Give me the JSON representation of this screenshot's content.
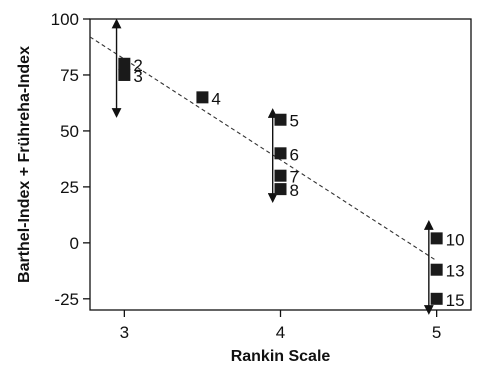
{
  "chart_data": {
    "type": "scatter",
    "title": "",
    "xlabel": "Rankin Scale",
    "ylabel": "Barthel-Index + Frühreha-Index",
    "xlim": [
      2.78,
      5.22
    ],
    "ylim": [
      -30,
      100
    ],
    "x_ticks": [
      {
        "value": 3,
        "label": "3"
      },
      {
        "value": 4,
        "label": "4"
      },
      {
        "value": 5,
        "label": "5"
      }
    ],
    "y_ticks": [
      {
        "value": 100,
        "label": "100"
      },
      {
        "value": 75,
        "label": "75"
      },
      {
        "value": 50,
        "label": "50"
      },
      {
        "value": 25,
        "label": "25"
      },
      {
        "value": 0,
        "label": "0"
      },
      {
        "value": -25,
        "label": "-25"
      }
    ],
    "points": [
      {
        "label": "2",
        "x": 3.0,
        "y": 80
      },
      {
        "label": "3",
        "x": 3.0,
        "y": 75
      },
      {
        "label": "4",
        "x": 3.5,
        "y": 65
      },
      {
        "label": "5",
        "x": 4.0,
        "y": 55
      },
      {
        "label": "6",
        "x": 4.0,
        "y": 40
      },
      {
        "label": "7",
        "x": 4.0,
        "y": 30
      },
      {
        "label": "8",
        "x": 4.0,
        "y": 24
      },
      {
        "label": "10",
        "x": 5.0,
        "y": 2
      },
      {
        "label": "13",
        "x": 5.0,
        "y": -12
      },
      {
        "label": "15",
        "x": 5.0,
        "y": -25
      }
    ],
    "ranges": [
      {
        "x": 2.95,
        "y_low": 58,
        "y_high": 98
      },
      {
        "x": 3.95,
        "y_low": 20,
        "y_high": 58
      },
      {
        "x": 4.95,
        "y_low": -30,
        "y_high": 8
      }
    ],
    "trendline": {
      "x_start": 2.78,
      "y_start": 92,
      "x_end": 5.0,
      "y_end": -8,
      "style": "dashed"
    },
    "grid": false,
    "legend": "none",
    "colors": {
      "marker": "#1a1a1a",
      "axis": "#111111",
      "trendline": "#333333"
    }
  }
}
